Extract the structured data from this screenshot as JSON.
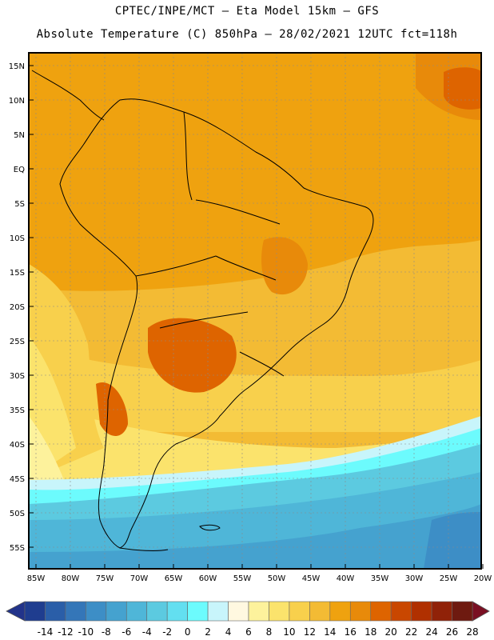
{
  "header": {
    "line1": "CPTEC/INPE/MCT –  Eta Model 15km – GFS",
    "line2": "Absolute Temperature (C) 850hPa – 28/02/2021 12UTC fct=118h"
  },
  "map": {
    "lat_labels": [
      "15N",
      "10N",
      "5N",
      "EQ",
      "5S",
      "10S",
      "15S",
      "20S",
      "25S",
      "30S",
      "35S",
      "40S",
      "45S",
      "50S",
      "55S"
    ],
    "lon_labels": [
      "85W",
      "80W",
      "75W",
      "70W",
      "65W",
      "60W",
      "55W",
      "50W",
      "45W",
      "40W",
      "35W",
      "30W",
      "25W",
      "20W"
    ]
  },
  "colorbar": {
    "labels": [
      "-14",
      "-12",
      "-10",
      "-8",
      "-6",
      "-4",
      "-2",
      "0",
      "2",
      "4",
      "6",
      "8",
      "10",
      "12",
      "14",
      "16",
      "18",
      "20",
      "22",
      "24",
      "26",
      "28"
    ],
    "colors": [
      "#1f3d8f",
      "#2a5ea8",
      "#3476b8",
      "#3d8ec6",
      "#45a2cf",
      "#4fb6d8",
      "#5ccae0",
      "#63dff0",
      "#6cfbfd",
      "#c8f5fb",
      "#fff8e0",
      "#fdf29c",
      "#fbe36c",
      "#f8d04c",
      "#f3bb34",
      "#efa20f",
      "#e88a0a",
      "#de6400",
      "#c94700",
      "#b03000",
      "#902208",
      "#6e1a10"
    ],
    "left_cap_color": "#22338a",
    "right_cap_color": "#7a0f22"
  }
}
